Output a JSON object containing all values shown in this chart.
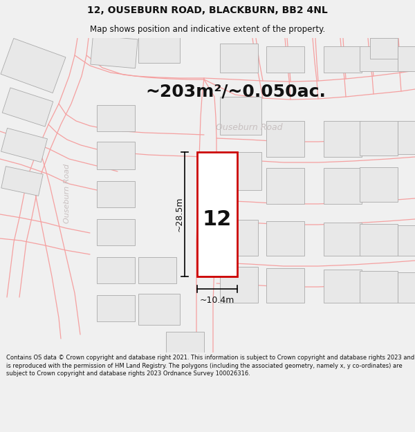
{
  "title_line1": "12, OUSEBURN ROAD, BLACKBURN, BB2 4NL",
  "title_line2": "Map shows position and indicative extent of the property.",
  "area_text": "~203m²/~0.050ac.",
  "number_label": "12",
  "width_label": "~10.4m",
  "height_label": "~28.5m",
  "road_label_main": "Ouseburn Road",
  "road_label_side": "Ouseburn Road",
  "footer_text": "Contains OS data © Crown copyright and database right 2021. This information is subject to Crown copyright and database rights 2023 and is reproduced with the permission of HM Land Registry. The polygons (including the associated geometry, namely x, y co-ordinates) are subject to Crown copyright and database rights 2023 Ordnance Survey 100026316.",
  "bg_color": "#f0f0f0",
  "map_bg": "#ffffff",
  "plot_color": "#cc0000",
  "building_fill": "#e8e8e8",
  "building_edge": "#aaaaaa",
  "road_line_color": "#f5a0a0",
  "road_label_color": "#c8c0c0",
  "dim_line_color": "#000000",
  "title_fontsize": 10,
  "subtitle_fontsize": 8.5,
  "area_fontsize": 18,
  "number_fontsize": 22,
  "dim_fontsize": 9,
  "road_label_fontsize": 9,
  "side_road_label_fontsize": 8,
  "footer_fontsize": 6.0
}
